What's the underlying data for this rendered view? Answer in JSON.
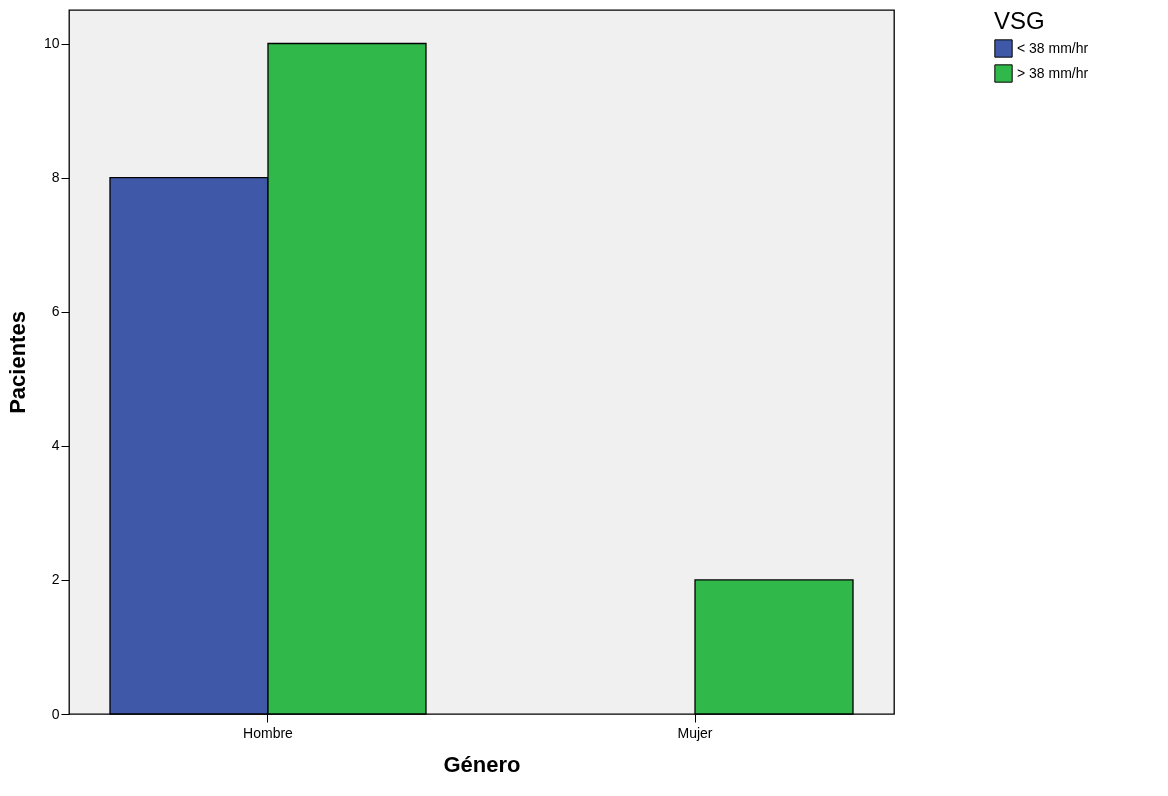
{
  "chart_data": {
    "type": "bar",
    "xlabel": "Género",
    "ylabel": "Pacientes",
    "legend_title": "VSG",
    "categories": [
      "Hombre",
      "Mujer"
    ],
    "series": [
      {
        "name": "< 38 mm/hr",
        "color": "#3f59a8",
        "values": [
          8,
          null
        ]
      },
      {
        "name": "> 38 mm/hr",
        "color": "#31b84a",
        "values": [
          10,
          2
        ]
      }
    ],
    "ylim": [
      0,
      10.5
    ],
    "yticks": [
      0,
      2,
      4,
      6,
      8,
      10
    ],
    "grid": false,
    "legend": "top right"
  }
}
